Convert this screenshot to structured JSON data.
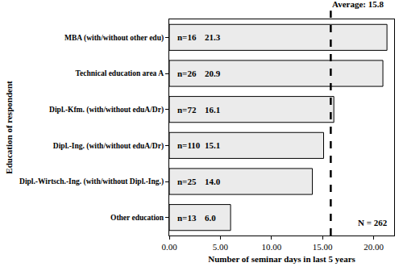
{
  "chart_data": {
    "type": "bar",
    "orientation": "horizontal",
    "categories": [
      "MBA (with/without other edu)",
      "Technical education area A",
      "Dipl.-Kfm. (with/without eduA/Dr)",
      "Dipl.-Ing. (with/without eduA/Dr)",
      "Dipl.-Wirtsch.-Ing. (with/without Dipl.-Ing.)",
      "Other education"
    ],
    "values": [
      21.3,
      20.9,
      16.1,
      15.1,
      14.0,
      6.0
    ],
    "value_labels": [
      "21.3",
      "20.9",
      "16.1",
      "15.1",
      "14.0",
      "6.0"
    ],
    "data_labels": true,
    "n": [
      16,
      26,
      72,
      110,
      25,
      13
    ],
    "n_labels": [
      "n=16",
      "n=26",
      "n=72",
      "n=110",
      "n=25",
      "n=13"
    ],
    "color": "#ebebeb",
    "xlabel": "Number of seminar days in last 5 years",
    "ylabel": "Education of respondent",
    "xlim": [
      0,
      22
    ],
    "xticks": [
      {
        "value": 0,
        "label": "0.00"
      },
      {
        "value": 5,
        "label": "5.00"
      },
      {
        "value": 10,
        "label": "10.00"
      },
      {
        "value": 15,
        "label": "15.00"
      },
      {
        "value": 20,
        "label": "20.00"
      }
    ],
    "grid": false,
    "reference_line": {
      "value": 15.8,
      "label": "Average: 15.8",
      "line_style": "dash"
    },
    "annotations": [
      "N = 262"
    ]
  }
}
